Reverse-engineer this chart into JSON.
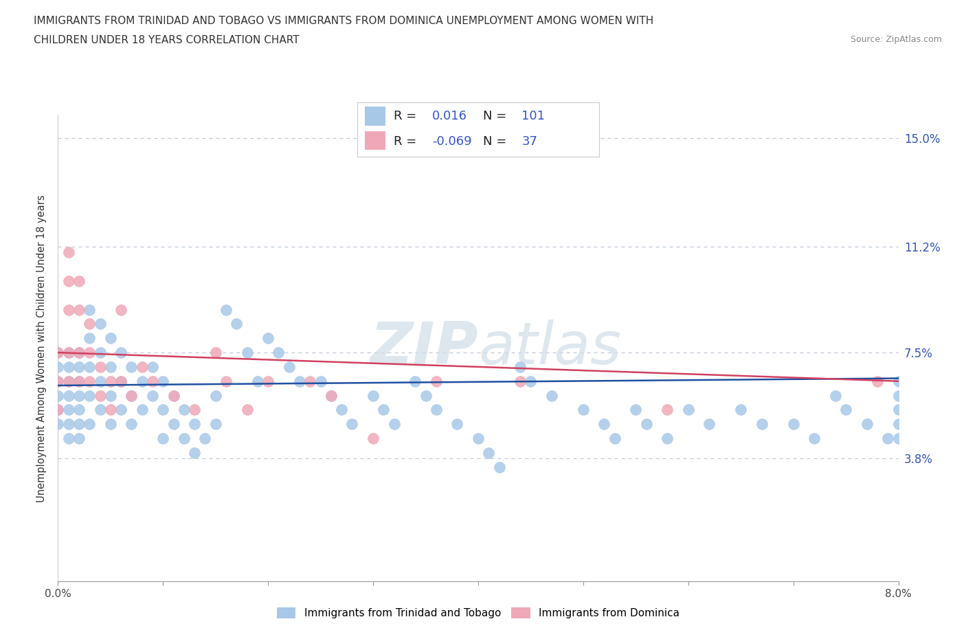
{
  "title_line1": "IMMIGRANTS FROM TRINIDAD AND TOBAGO VS IMMIGRANTS FROM DOMINICA UNEMPLOYMENT AMONG WOMEN WITH",
  "title_line2": "CHILDREN UNDER 18 YEARS CORRELATION CHART",
  "source_text": "Source: ZipAtlas.com",
  "watermark_zip": "ZIP",
  "watermark_atlas": "atlas",
  "ylabel": "Unemployment Among Women with Children Under 18 years",
  "xlim": [
    0.0,
    0.08
  ],
  "ylim": [
    -0.005,
    0.16
  ],
  "yticks": [
    0.0,
    0.038,
    0.075,
    0.112,
    0.15
  ],
  "ytick_labels": [
    "",
    "3.8%",
    "7.5%",
    "11.2%",
    "15.0%"
  ],
  "xtick_positions": [
    0.0,
    0.01,
    0.02,
    0.03,
    0.04,
    0.05,
    0.06,
    0.07,
    0.08
  ],
  "xtick_labels": [
    "0.0%",
    "",
    "",
    "",
    "",
    "",
    "",
    "",
    "8.0%"
  ],
  "legend_labels": [
    "Immigrants from Trinidad and Tobago",
    "Immigrants from Dominica"
  ],
  "r_tt": 0.016,
  "n_tt": 101,
  "r_dom": -0.069,
  "n_dom": 37,
  "color_tt": "#a8c8e8",
  "color_dom": "#f0a8b8",
  "line_color_tt": "#2050a0",
  "line_color_dom": "#d04060",
  "grid_color": "#c0c8d8",
  "tt_x": [
    0.0,
    0.0,
    0.0,
    0.0,
    0.0,
    0.0,
    0.001,
    0.001,
    0.001,
    0.001,
    0.001,
    0.001,
    0.001,
    0.002,
    0.002,
    0.002,
    0.002,
    0.002,
    0.002,
    0.002,
    0.003,
    0.003,
    0.003,
    0.003,
    0.003,
    0.004,
    0.004,
    0.004,
    0.004,
    0.005,
    0.005,
    0.005,
    0.005,
    0.006,
    0.006,
    0.006,
    0.007,
    0.007,
    0.007,
    0.008,
    0.008,
    0.009,
    0.009,
    0.01,
    0.01,
    0.01,
    0.011,
    0.011,
    0.012,
    0.012,
    0.013,
    0.013,
    0.014,
    0.015,
    0.015,
    0.016,
    0.017,
    0.018,
    0.019,
    0.02,
    0.021,
    0.022,
    0.023,
    0.025,
    0.026,
    0.027,
    0.028,
    0.03,
    0.031,
    0.032,
    0.034,
    0.035,
    0.036,
    0.038,
    0.04,
    0.041,
    0.042,
    0.044,
    0.045,
    0.047,
    0.05,
    0.052,
    0.053,
    0.055,
    0.056,
    0.058,
    0.06,
    0.062,
    0.065,
    0.067,
    0.07,
    0.072,
    0.074,
    0.075,
    0.077,
    0.079,
    0.08,
    0.08,
    0.08,
    0.08,
    0.08
  ],
  "tt_y": [
    0.075,
    0.07,
    0.065,
    0.06,
    0.055,
    0.05,
    0.075,
    0.07,
    0.065,
    0.06,
    0.055,
    0.05,
    0.045,
    0.075,
    0.07,
    0.065,
    0.06,
    0.055,
    0.05,
    0.045,
    0.09,
    0.08,
    0.07,
    0.06,
    0.05,
    0.085,
    0.075,
    0.065,
    0.055,
    0.08,
    0.07,
    0.06,
    0.05,
    0.075,
    0.065,
    0.055,
    0.07,
    0.06,
    0.05,
    0.065,
    0.055,
    0.07,
    0.06,
    0.065,
    0.055,
    0.045,
    0.06,
    0.05,
    0.055,
    0.045,
    0.05,
    0.04,
    0.045,
    0.06,
    0.05,
    0.09,
    0.085,
    0.075,
    0.065,
    0.08,
    0.075,
    0.07,
    0.065,
    0.065,
    0.06,
    0.055,
    0.05,
    0.06,
    0.055,
    0.05,
    0.065,
    0.06,
    0.055,
    0.05,
    0.045,
    0.04,
    0.035,
    0.07,
    0.065,
    0.06,
    0.055,
    0.05,
    0.045,
    0.055,
    0.05,
    0.045,
    0.055,
    0.05,
    0.055,
    0.05,
    0.05,
    0.045,
    0.06,
    0.055,
    0.05,
    0.045,
    0.065,
    0.06,
    0.055,
    0.05,
    0.045
  ],
  "dom_x": [
    0.0,
    0.0,
    0.0,
    0.001,
    0.001,
    0.001,
    0.001,
    0.001,
    0.002,
    0.002,
    0.002,
    0.002,
    0.003,
    0.003,
    0.003,
    0.004,
    0.004,
    0.005,
    0.005,
    0.006,
    0.006,
    0.007,
    0.008,
    0.009,
    0.011,
    0.013,
    0.015,
    0.016,
    0.018,
    0.02,
    0.024,
    0.026,
    0.03,
    0.036,
    0.044,
    0.058,
    0.078
  ],
  "dom_y": [
    0.075,
    0.065,
    0.055,
    0.11,
    0.1,
    0.09,
    0.075,
    0.065,
    0.1,
    0.09,
    0.075,
    0.065,
    0.085,
    0.075,
    0.065,
    0.07,
    0.06,
    0.065,
    0.055,
    0.09,
    0.065,
    0.06,
    0.07,
    0.065,
    0.06,
    0.055,
    0.075,
    0.065,
    0.055,
    0.065,
    0.065,
    0.06,
    0.045,
    0.065,
    0.065,
    0.055,
    0.065
  ],
  "tt_trend_x0": 0.0,
  "tt_trend_y0": 0.0635,
  "tt_trend_x1": 0.08,
  "tt_trend_y1": 0.066,
  "dom_trend_x0": 0.0,
  "dom_trend_y0": 0.075,
  "dom_trend_x1": 0.08,
  "dom_trend_y1": 0.065
}
